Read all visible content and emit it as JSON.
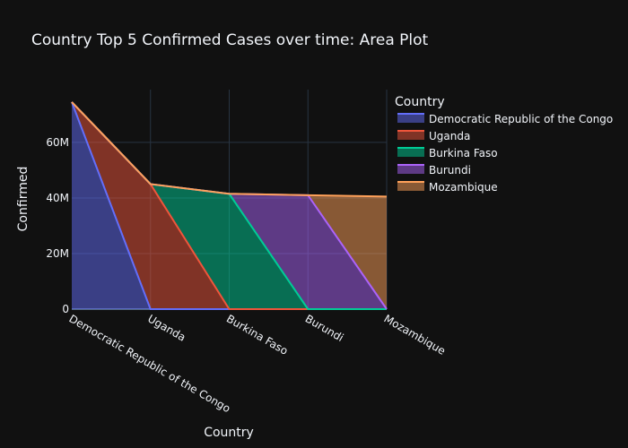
{
  "chart_data": {
    "type": "area",
    "title": "Country Top 5 Confirmed Cases over time: Area Plot",
    "xlabel": "Country",
    "ylabel": "Confirmed",
    "categories": [
      "Democratic Republic of the Congo",
      "Uganda",
      "Burkina Faso",
      "Burundi",
      "Mozambique"
    ],
    "ylim": [
      0,
      79000000
    ],
    "yticks": [
      0,
      20000000,
      40000000,
      60000000
    ],
    "ytick_labels": [
      "0",
      "20M",
      "40M",
      "60M"
    ],
    "grid": true,
    "stacked": true,
    "legend_title": "Country",
    "legend_position": "right",
    "series": [
      {
        "name": "Democratic Republic of the Congo",
        "color": "#636efa",
        "values": [
          74500000,
          0,
          0,
          0,
          0
        ]
      },
      {
        "name": "Uganda",
        "color": "#ef553b",
        "values": [
          0,
          45000000,
          0,
          0,
          0
        ]
      },
      {
        "name": "Burkina Faso",
        "color": "#00cc96",
        "values": [
          0,
          0,
          41500000,
          0,
          0
        ]
      },
      {
        "name": "Burundi",
        "color": "#ab63fa",
        "values": [
          0,
          0,
          0,
          41000000,
          0
        ]
      },
      {
        "name": "Mozambique",
        "color": "#ffa15a",
        "values": [
          0,
          0,
          0,
          0,
          40500000
        ]
      }
    ]
  }
}
